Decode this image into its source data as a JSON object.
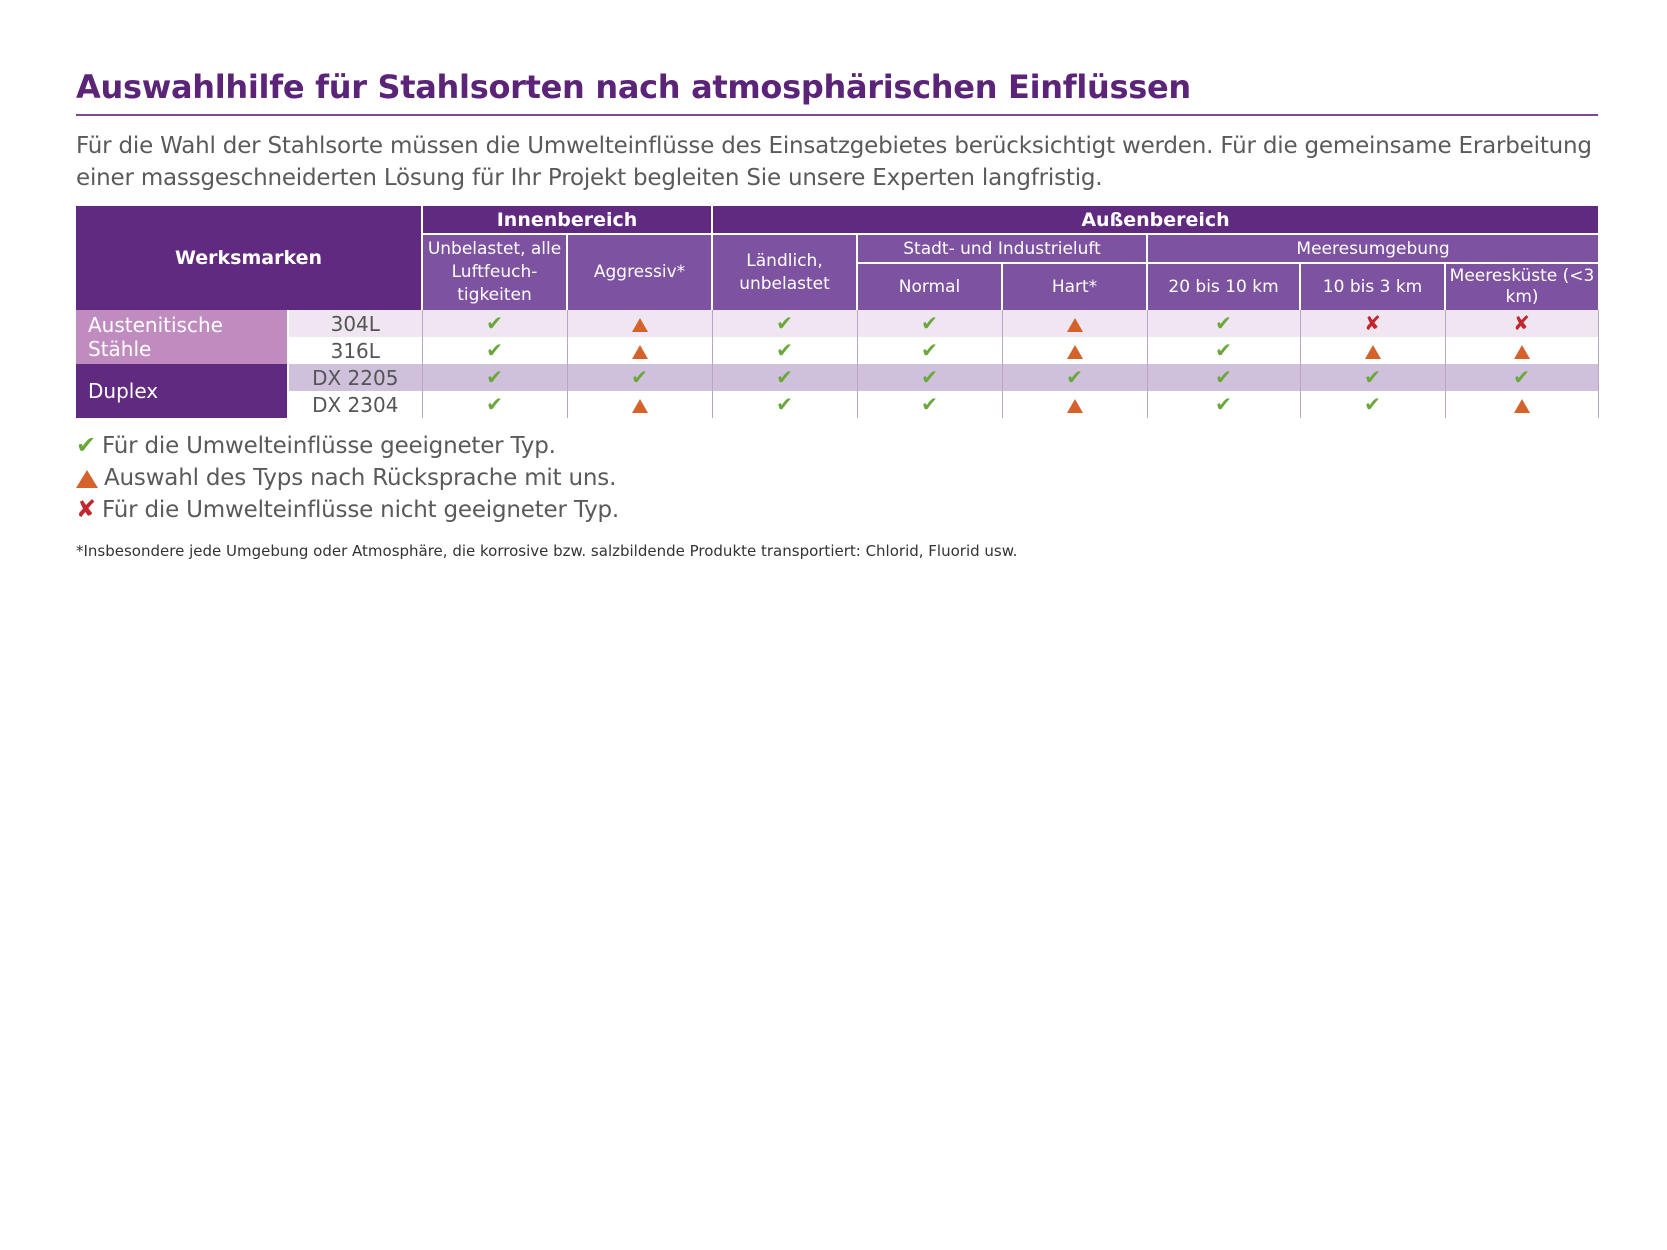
{
  "title": "Auswahlhilfe für Stahlsorten nach atmosphärischen Einflüssen",
  "intro": "Für die Wahl der Stahlsorte müssen die Umwelteinflüsse des Einsatzgebietes berücksichtigt werden. Für die gemeinsame Erarbeitung einer massgeschneiderten Lösung für Ihr Projekt begleiten Sie unsere Experten langfristig.",
  "table": {
    "corner": "Werksmarken",
    "group_inner": "Innenbereich",
    "group_outer": "Außenbereich",
    "sub_city": "Stadt- und Industrieluft",
    "sub_sea": "Meeresumgebung",
    "col_inner_unloaded": "Unbelastet, alle Luftfeuch­tigkeiten",
    "col_inner_aggressive": "Aggressiv*",
    "col_rural": "Ländlich, unbelastet",
    "col_normal": "Normal",
    "col_hard": "Hart*",
    "col_20_10": "20 bis 10 km",
    "col_10_3": "10 bis 3 km",
    "col_coast": "Meeresküste (<3 km)",
    "families": [
      {
        "name": "Austenitische Stähle"
      },
      {
        "name": "Duplex"
      }
    ],
    "rows": [
      {
        "grade": "304L",
        "values": [
          "ok",
          "warn",
          "ok",
          "ok",
          "warn",
          "ok",
          "no",
          "no"
        ]
      },
      {
        "grade": "316L",
        "values": [
          "ok",
          "warn",
          "ok",
          "ok",
          "warn",
          "ok",
          "warn",
          "warn"
        ]
      },
      {
        "grade": "DX 2205",
        "values": [
          "ok",
          "ok",
          "ok",
          "ok",
          "ok",
          "ok",
          "ok",
          "ok"
        ]
      },
      {
        "grade": "DX 2304",
        "values": [
          "ok",
          "warn",
          "ok",
          "ok",
          "warn",
          "ok",
          "ok",
          "warn"
        ]
      }
    ]
  },
  "legend": {
    "ok": "Für die Umwelteinflüsse geeigneter Typ.",
    "warn": "Auswahl des Typs nach Rücksprache mit uns.",
    "no": "Für die Umwelteinflüsse nicht geeigneter Typ."
  },
  "footnote": "*Insbesondere jede Umgebung oder Atmosphäre, die korrosive bzw. salzbildende Produkte transportiert: Chlorid, Fluorid usw.",
  "colors": {
    "ok": "#6aa83b",
    "warn": "#d4622a",
    "no": "#c1272d",
    "primary": "#5f2a80",
    "secondary": "#7d52a0"
  }
}
